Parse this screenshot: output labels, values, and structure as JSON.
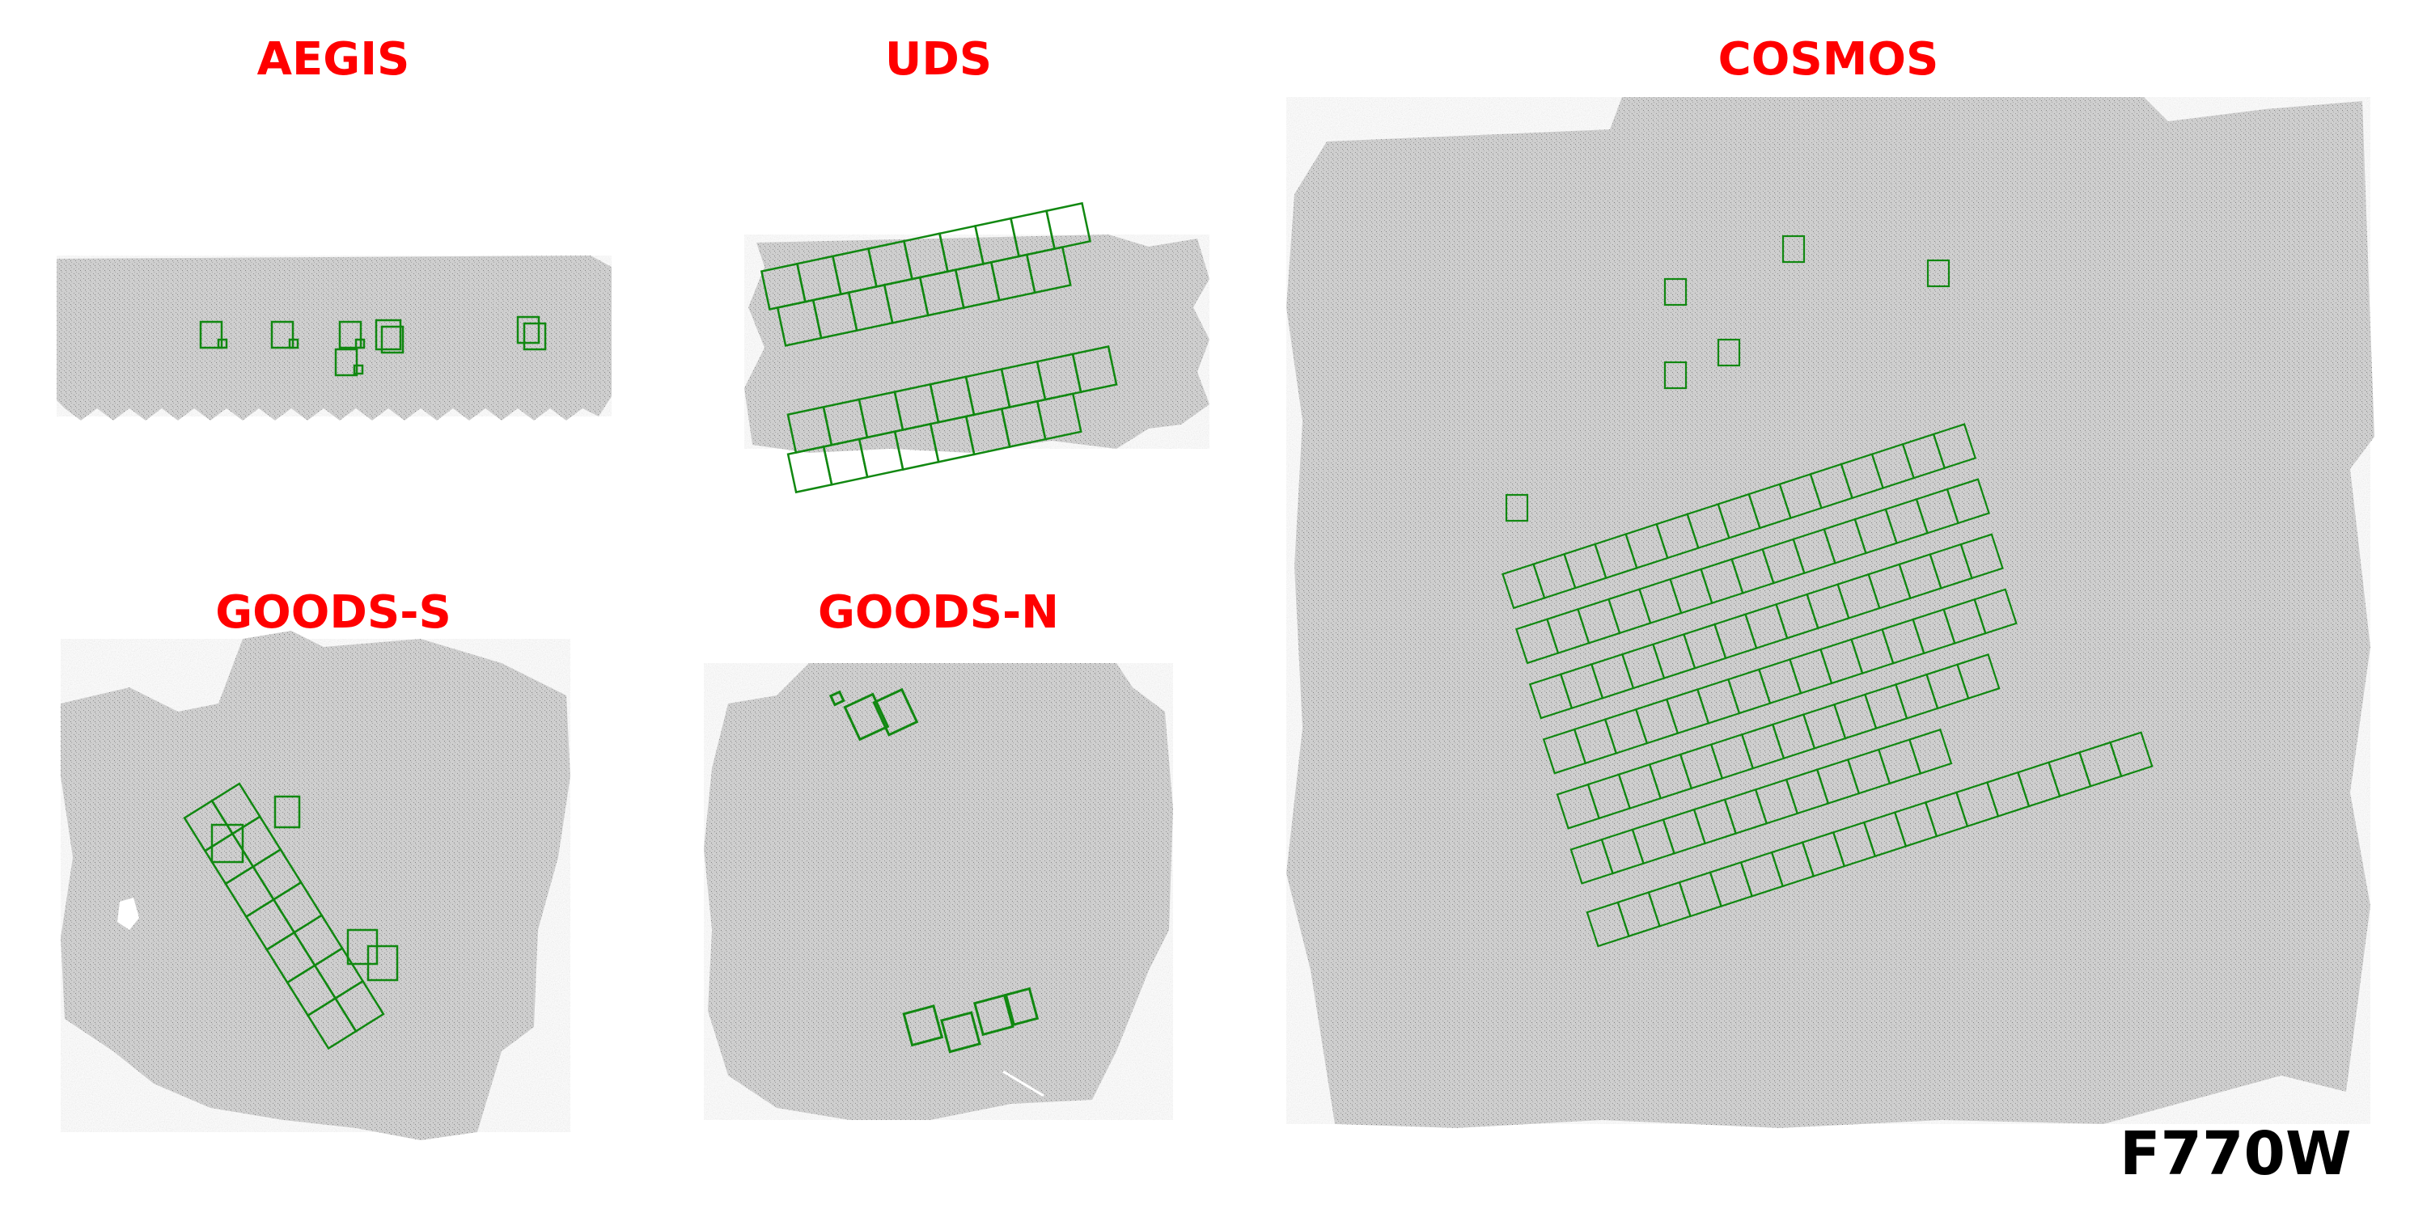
{
  "fields": [
    {
      "id": "aegis",
      "label": "AEGIS"
    },
    {
      "id": "uds",
      "label": "UDS"
    },
    {
      "id": "cosmos",
      "label": "COSMOS"
    },
    {
      "id": "goods-s",
      "label": "GOODS-S"
    },
    {
      "id": "goods-n",
      "label": "GOODS-N"
    }
  ],
  "filter": "F770W",
  "colors": {
    "label": "#ff0000",
    "footprint_outline": "#118811",
    "image_background": "#c8c8c8",
    "page_background": "#ffffff"
  }
}
